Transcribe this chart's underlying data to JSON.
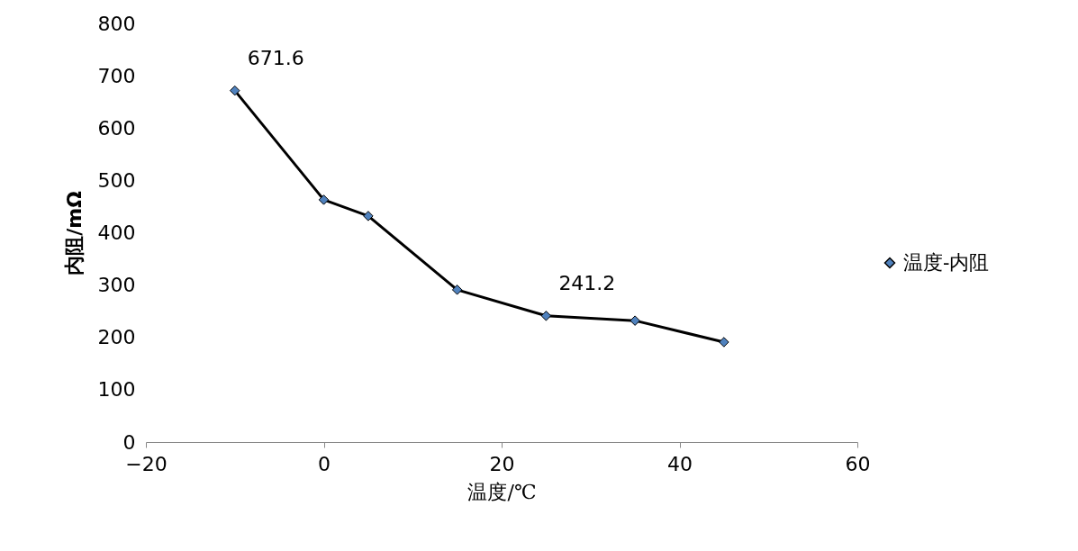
{
  "chart_data": {
    "type": "line",
    "xlabel": "温度/℃",
    "ylabel": "内阻/mΩ",
    "x": [
      -10,
      0,
      5,
      15,
      25,
      35,
      45
    ],
    "series": [
      {
        "name": "温度-内阻",
        "color": "#4f81bd",
        "values": [
          671.6,
          463,
          432,
          291,
          241.2,
          232,
          191
        ],
        "value_labels": [
          "671.6",
          null,
          null,
          null,
          "241.2",
          null,
          null
        ]
      }
    ],
    "xlim": [
      -20,
      60
    ],
    "xticks": [
      -20,
      0,
      20,
      40,
      60
    ],
    "ylim": [
      0,
      800
    ],
    "yticks": [
      0,
      100,
      200,
      300,
      400,
      500,
      600,
      700,
      800
    ],
    "grid": false,
    "legend": "right",
    "marker": "diamond",
    "line_style": "solid"
  }
}
